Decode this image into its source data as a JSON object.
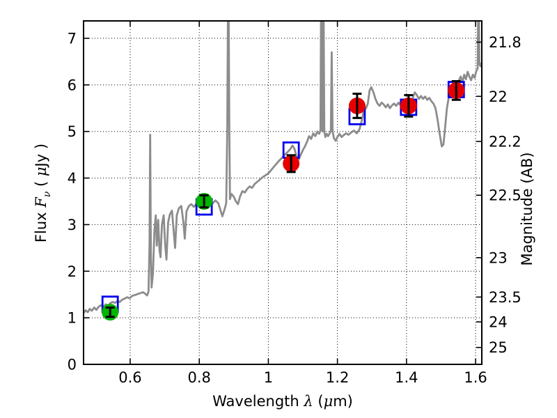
{
  "figure": {
    "background": "#ffffff"
  },
  "chart_data": {
    "type": "line",
    "title": "",
    "description": "Galaxy SED: gray model spectrum with blue open squares (model photometry) and green/red filled circles with black error bars (observed photometry)",
    "xlabel_parts": [
      "Wavelength  ",
      "λ",
      " (",
      "μ",
      "m)"
    ],
    "ylabel_left_parts": [
      "Flux  ",
      "F",
      "ν",
      "  ( ",
      "μ",
      "Jy )"
    ],
    "ylabel_right": "Magnitude (AB)",
    "xlim": [
      0.465,
      1.618
    ],
    "ylim_flux": [
      0,
      7.374
    ],
    "x_ticks": [
      0.6,
      0.8,
      1.0,
      1.2,
      1.4,
      1.6
    ],
    "x_tick_labels": [
      "0.6",
      "0.8",
      "1",
      "1.2",
      "1.4",
      "1.6"
    ],
    "y_ticks_flux": [
      0,
      1,
      2,
      3,
      4,
      5,
      6,
      7
    ],
    "y_tick_labels_flux": [
      "0",
      "1",
      "2",
      "3",
      "4",
      "5",
      "6",
      "7"
    ],
    "right_axis_ticks": [
      {
        "label": "21.8",
        "flux": 6.918
      },
      {
        "label": "22",
        "flux": 5.754
      },
      {
        "label": "22.2",
        "flux": 4.786
      },
      {
        "label": "22.5",
        "flux": 3.631
      },
      {
        "label": "23",
        "flux": 2.291
      },
      {
        "label": "23.5",
        "flux": 1.445
      },
      {
        "label": "24",
        "flux": 0.912
      },
      {
        "label": "25",
        "flux": 0.363
      }
    ],
    "grid": {
      "style": "dotted",
      "color": "#000000",
      "x_at": [
        0.6,
        0.8,
        1.0,
        1.2,
        1.4,
        1.6
      ],
      "y_at_flux": [
        1,
        2,
        3,
        4,
        5,
        6,
        7
      ]
    },
    "colors": {
      "spectrum": "#8c8c8c",
      "square": "#0000ee",
      "green": "#00b400",
      "red": "#e60000",
      "errorbar": "#000000"
    },
    "observed_photometry": [
      {
        "wavelength": 0.542,
        "flux": 1.12,
        "err": 0.1,
        "color": "green"
      },
      {
        "wavelength": 0.814,
        "flux": 3.5,
        "err": 0.13,
        "color": "green"
      },
      {
        "wavelength": 1.066,
        "flux": 4.31,
        "err": 0.18,
        "color": "red"
      },
      {
        "wavelength": 1.257,
        "flux": 5.55,
        "err": 0.26,
        "color": "red"
      },
      {
        "wavelength": 1.406,
        "flux": 5.55,
        "err": 0.23,
        "color": "red"
      },
      {
        "wavelength": 1.544,
        "flux": 5.88,
        "err": 0.2,
        "color": "red"
      }
    ],
    "model_photometry_squares": [
      {
        "wavelength": 0.542,
        "flux": 1.29
      },
      {
        "wavelength": 0.814,
        "flux": 3.38
      },
      {
        "wavelength": 1.066,
        "flux": 4.6
      },
      {
        "wavelength": 1.257,
        "flux": 5.32
      },
      {
        "wavelength": 1.406,
        "flux": 5.52
      },
      {
        "wavelength": 1.544,
        "flux": 5.9
      }
    ],
    "model_spectrum": [
      [
        0.465,
        1.1
      ],
      [
        0.471,
        1.16
      ],
      [
        0.477,
        1.12
      ],
      [
        0.483,
        1.19
      ],
      [
        0.489,
        1.15
      ],
      [
        0.496,
        1.22
      ],
      [
        0.502,
        1.17
      ],
      [
        0.509,
        1.24
      ],
      [
        0.516,
        1.27
      ],
      [
        0.522,
        1.23
      ],
      [
        0.529,
        1.29
      ],
      [
        0.536,
        1.26
      ],
      [
        0.542,
        1.31
      ],
      [
        0.549,
        1.34
      ],
      [
        0.556,
        1.32
      ],
      [
        0.563,
        1.36
      ],
      [
        0.57,
        1.34
      ],
      [
        0.577,
        1.39
      ],
      [
        0.584,
        1.41
      ],
      [
        0.591,
        1.44
      ],
      [
        0.598,
        1.42
      ],
      [
        0.606,
        1.47
      ],
      [
        0.614,
        1.49
      ],
      [
        0.622,
        1.51
      ],
      [
        0.63,
        1.53
      ],
      [
        0.637,
        1.55
      ],
      [
        0.643,
        1.52
      ],
      [
        0.649,
        1.48
      ],
      [
        0.653,
        1.56
      ],
      [
        0.656,
        2.6
      ],
      [
        0.658,
        4.93
      ],
      [
        0.66,
        2.4
      ],
      [
        0.662,
        1.65
      ],
      [
        0.666,
        1.95
      ],
      [
        0.67,
        2.85
      ],
      [
        0.674,
        3.2
      ],
      [
        0.677,
        2.55
      ],
      [
        0.681,
        3.1
      ],
      [
        0.685,
        2.45
      ],
      [
        0.688,
        2.3
      ],
      [
        0.692,
        3.0
      ],
      [
        0.697,
        3.2
      ],
      [
        0.701,
        2.6
      ],
      [
        0.705,
        2.25
      ],
      [
        0.71,
        3.05
      ],
      [
        0.715,
        3.22
      ],
      [
        0.721,
        3.3
      ],
      [
        0.726,
        2.85
      ],
      [
        0.73,
        2.5
      ],
      [
        0.735,
        3.2
      ],
      [
        0.741,
        3.35
      ],
      [
        0.748,
        3.4
      ],
      [
        0.754,
        3.05
      ],
      [
        0.758,
        2.7
      ],
      [
        0.763,
        3.28
      ],
      [
        0.77,
        3.4
      ],
      [
        0.777,
        3.44
      ],
      [
        0.784,
        3.38
      ],
      [
        0.791,
        3.44
      ],
      [
        0.799,
        3.48
      ],
      [
        0.807,
        3.46
      ],
      [
        0.815,
        3.52
      ],
      [
        0.823,
        3.55
      ],
      [
        0.831,
        3.5
      ],
      [
        0.839,
        3.46
      ],
      [
        0.847,
        3.52
      ],
      [
        0.855,
        3.46
      ],
      [
        0.861,
        3.32
      ],
      [
        0.867,
        3.18
      ],
      [
        0.873,
        3.32
      ],
      [
        0.878,
        3.46
      ],
      [
        0.881,
        5.0
      ],
      [
        0.883,
        7.6
      ],
      [
        0.885,
        7.6
      ],
      [
        0.887,
        5.0
      ],
      [
        0.889,
        3.55
      ],
      [
        0.893,
        3.66
      ],
      [
        0.9,
        3.6
      ],
      [
        0.906,
        3.5
      ],
      [
        0.912,
        3.44
      ],
      [
        0.918,
        3.6
      ],
      [
        0.925,
        3.72
      ],
      [
        0.932,
        3.69
      ],
      [
        0.939,
        3.77
      ],
      [
        0.946,
        3.82
      ],
      [
        0.953,
        3.79
      ],
      [
        0.96,
        3.87
      ],
      [
        0.968,
        3.92
      ],
      [
        0.976,
        3.97
      ],
      [
        0.984,
        4.02
      ],
      [
        0.992,
        4.06
      ],
      [
        1.0,
        4.1
      ],
      [
        1.008,
        4.17
      ],
      [
        1.016,
        4.24
      ],
      [
        1.024,
        4.31
      ],
      [
        1.032,
        4.38
      ],
      [
        1.04,
        4.44
      ],
      [
        1.048,
        4.5
      ],
      [
        1.056,
        4.56
      ],
      [
        1.064,
        4.63
      ],
      [
        1.07,
        4.7
      ],
      [
        1.076,
        4.62
      ],
      [
        1.082,
        4.46
      ],
      [
        1.088,
        4.4
      ],
      [
        1.094,
        4.5
      ],
      [
        1.1,
        4.6
      ],
      [
        1.106,
        4.68
      ],
      [
        1.112,
        4.78
      ],
      [
        1.118,
        4.9
      ],
      [
        1.124,
        4.84
      ],
      [
        1.13,
        4.96
      ],
      [
        1.136,
        4.9
      ],
      [
        1.142,
        5.0
      ],
      [
        1.147,
        4.95
      ],
      [
        1.151,
        5.02
      ],
      [
        1.1525,
        7.6
      ],
      [
        1.154,
        7.6
      ],
      [
        1.1555,
        5.05
      ],
      [
        1.157,
        5.0
      ],
      [
        1.1585,
        7.6
      ],
      [
        1.16,
        7.6
      ],
      [
        1.162,
        5.0
      ],
      [
        1.165,
        4.88
      ],
      [
        1.169,
        4.95
      ],
      [
        1.173,
        4.9
      ],
      [
        1.177,
        4.95
      ],
      [
        1.181,
        5.02
      ],
      [
        1.1835,
        6.7
      ],
      [
        1.186,
        5.0
      ],
      [
        1.19,
        4.85
      ],
      [
        1.195,
        4.8
      ],
      [
        1.2,
        4.88
      ],
      [
        1.206,
        4.95
      ],
      [
        1.212,
        4.88
      ],
      [
        1.218,
        4.92
      ],
      [
        1.225,
        4.96
      ],
      [
        1.232,
        4.93
      ],
      [
        1.24,
        4.98
      ],
      [
        1.248,
        5.02
      ],
      [
        1.256,
        4.96
      ],
      [
        1.264,
        5.05
      ],
      [
        1.272,
        5.28
      ],
      [
        1.278,
        5.55
      ],
      [
        1.283,
        5.5
      ],
      [
        1.288,
        5.6
      ],
      [
        1.293,
        5.88
      ],
      [
        1.298,
        5.95
      ],
      [
        1.304,
        5.85
      ],
      [
        1.31,
        5.7
      ],
      [
        1.316,
        5.6
      ],
      [
        1.322,
        5.55
      ],
      [
        1.328,
        5.62
      ],
      [
        1.334,
        5.58
      ],
      [
        1.34,
        5.52
      ],
      [
        1.346,
        5.58
      ],
      [
        1.352,
        5.5
      ],
      [
        1.358,
        5.56
      ],
      [
        1.364,
        5.6
      ],
      [
        1.37,
        5.55
      ],
      [
        1.377,
        5.62
      ],
      [
        1.384,
        5.55
      ],
      [
        1.39,
        5.48
      ],
      [
        1.396,
        5.52
      ],
      [
        1.403,
        5.45
      ],
      [
        1.41,
        5.55
      ],
      [
        1.417,
        5.7
      ],
      [
        1.424,
        5.84
      ],
      [
        1.43,
        5.78
      ],
      [
        1.436,
        5.7
      ],
      [
        1.442,
        5.76
      ],
      [
        1.448,
        5.7
      ],
      [
        1.454,
        5.75
      ],
      [
        1.46,
        5.68
      ],
      [
        1.466,
        5.72
      ],
      [
        1.472,
        5.65
      ],
      [
        1.478,
        5.6
      ],
      [
        1.484,
        5.5
      ],
      [
        1.49,
        5.25
      ],
      [
        1.496,
        4.95
      ],
      [
        1.502,
        4.68
      ],
      [
        1.507,
        4.72
      ],
      [
        1.512,
        5.1
      ],
      [
        1.517,
        5.5
      ],
      [
        1.522,
        5.72
      ],
      [
        1.527,
        5.82
      ],
      [
        1.532,
        5.78
      ],
      [
        1.537,
        5.95
      ],
      [
        1.542,
        6.05
      ],
      [
        1.547,
        5.95
      ],
      [
        1.552,
        6.1
      ],
      [
        1.557,
        6.18
      ],
      [
        1.562,
        6.05
      ],
      [
        1.567,
        6.22
      ],
      [
        1.572,
        6.12
      ],
      [
        1.577,
        6.28
      ],
      [
        1.582,
        6.18
      ],
      [
        1.587,
        6.1
      ],
      [
        1.592,
        6.22
      ],
      [
        1.597,
        6.15
      ],
      [
        1.602,
        6.3
      ],
      [
        1.606,
        6.35
      ],
      [
        1.6075,
        7.6
      ],
      [
        1.6095,
        7.6
      ],
      [
        1.611,
        6.45
      ],
      [
        1.614,
        6.4
      ],
      [
        1.618,
        6.48
      ]
    ]
  }
}
